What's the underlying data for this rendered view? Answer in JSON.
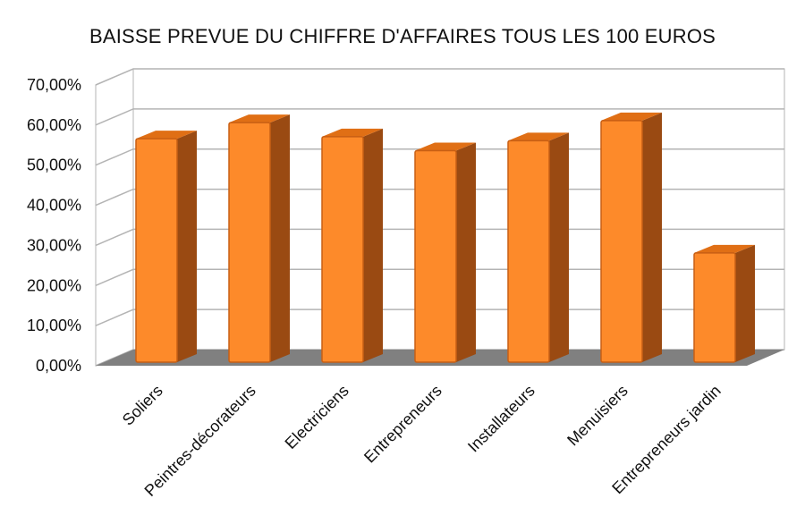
{
  "chart_data": {
    "type": "bar",
    "title": "BAISSE PREVUE DU CHIFFRE D'AFFAIRES TOUS LES 100 EUROS",
    "categories": [
      "Soliers",
      "Peintres-décorateurs",
      "Electriciens",
      "Entrepreneurs",
      "Installateurs",
      "Menuisiers",
      "Entrepreneurs jardin"
    ],
    "values": [
      57.5,
      61.5,
      58.0,
      54.5,
      57.0,
      62.0,
      29.0
    ],
    "value_format": "percent",
    "ylim": [
      0,
      70
    ],
    "yticks": [
      0,
      10,
      20,
      30,
      40,
      50,
      60,
      70
    ],
    "ytick_labels": [
      "0,00%",
      "10,00%",
      "20,00%",
      "30,00%",
      "40,00%",
      "50,00%",
      "60,00%",
      "70,00%"
    ],
    "grid": true,
    "style": "3d",
    "colors": {
      "bar_front": "#fd8a2a",
      "bar_side": "#9a4a12",
      "bar_top": "#e06f15",
      "bar_outline": "#c85f14",
      "floor": "#808080",
      "grid": "#b4b4b4"
    }
  }
}
